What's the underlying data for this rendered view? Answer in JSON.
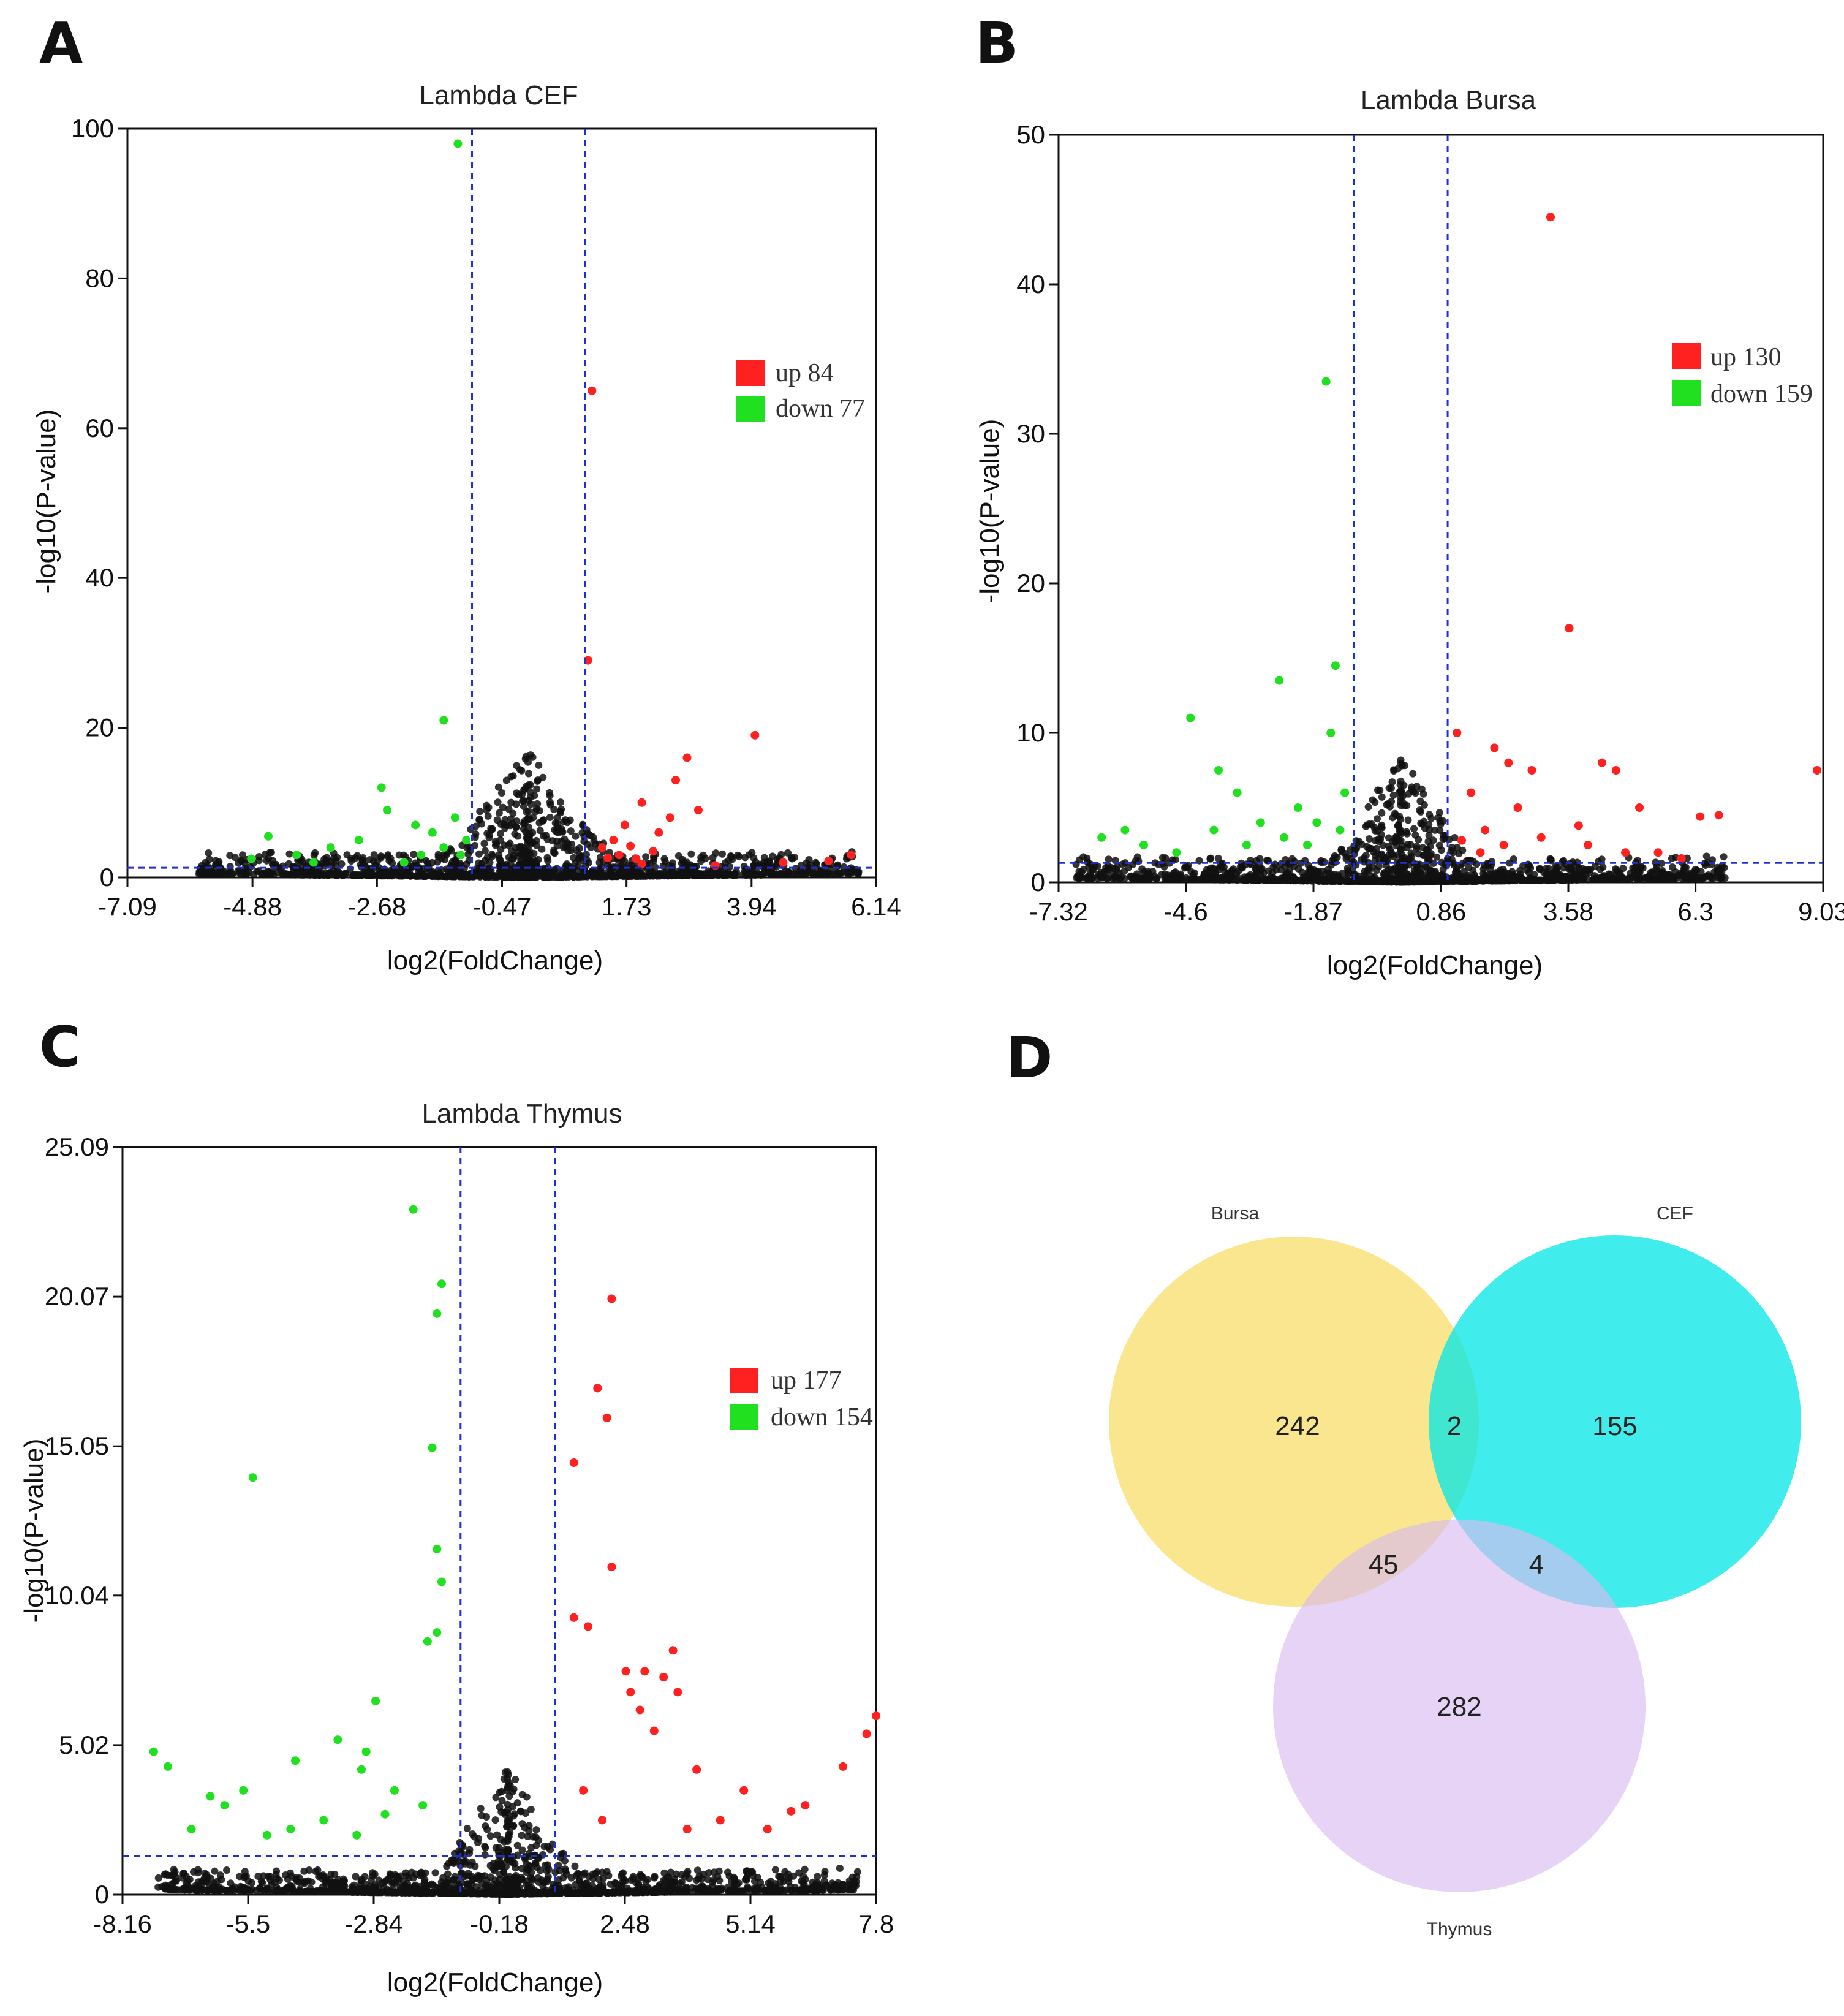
{
  "panels": {
    "A": {
      "letter": "A"
    },
    "B": {
      "letter": "B"
    },
    "C": {
      "letter": "C"
    },
    "D": {
      "letter": "D"
    }
  },
  "chart_data": [
    {
      "id": "A",
      "type": "scatter",
      "title": "Lambda CEF",
      "xlabel": "log2(FoldChange)",
      "ylabel": "-log10(P-value)",
      "xlim": [
        -7.09,
        6.14
      ],
      "ylim": [
        0,
        100
      ],
      "x_ticks": [
        -7.09,
        -4.88,
        -2.68,
        -0.47,
        1.73,
        3.94,
        6.14
      ],
      "y_ticks": [
        0,
        20,
        40,
        60,
        80,
        100
      ],
      "x_tick_labels": [
        "-7.09",
        "-4.88",
        "-2.68",
        "-0.47",
        "1.73",
        "3.94",
        "6.14"
      ],
      "y_tick_labels": [
        "0",
        "20",
        "40",
        "60",
        "80",
        "100"
      ],
      "thresholds": {
        "fc": [
          -1.0,
          1.0
        ],
        "p": 1.3
      },
      "legend": [
        {
          "label": "up 84",
          "color": "#ff2020"
        },
        {
          "label": "down 77",
          "color": "#20e020"
        }
      ],
      "up_points": [
        [
          1.12,
          65
        ],
        [
          1.05,
          29
        ],
        [
          4.0,
          19
        ],
        [
          2.8,
          16
        ],
        [
          2.6,
          13
        ],
        [
          2.5,
          8
        ],
        [
          3.0,
          9
        ],
        [
          2.0,
          10
        ],
        [
          1.7,
          7
        ],
        [
          2.3,
          6
        ],
        [
          1.5,
          5
        ],
        [
          1.6,
          3
        ],
        [
          1.9,
          2.5
        ],
        [
          2.2,
          3.5
        ],
        [
          5.3,
          2.2
        ],
        [
          5.7,
          3
        ],
        [
          4.5,
          2
        ],
        [
          3.3,
          1.6
        ],
        [
          2.0,
          1.8
        ],
        [
          1.4,
          2.6
        ],
        [
          1.3,
          4
        ],
        [
          1.8,
          4.2
        ]
      ],
      "down_points": [
        [
          -1.25,
          98
        ],
        [
          -1.5,
          21
        ],
        [
          -2.6,
          12
        ],
        [
          -2.5,
          9
        ],
        [
          -2.0,
          7
        ],
        [
          -3.5,
          4
        ],
        [
          -4.6,
          5.5
        ],
        [
          -4.1,
          3
        ],
        [
          -3.0,
          5
        ],
        [
          -1.7,
          6
        ],
        [
          -1.3,
          8
        ],
        [
          -1.1,
          5
        ],
        [
          -1.9,
          3
        ],
        [
          -1.5,
          4
        ],
        [
          -2.2,
          2
        ],
        [
          -4.9,
          2.5
        ],
        [
          -3.8,
          2
        ],
        [
          -1.2,
          3
        ]
      ]
    },
    {
      "id": "B",
      "type": "scatter",
      "title": "Lambda Bursa",
      "xlabel": "log2(FoldChange)",
      "ylabel": "-log10(P-value)",
      "xlim": [
        -7.32,
        9.03
      ],
      "ylim": [
        0,
        50
      ],
      "x_ticks": [
        -7.32,
        -4.6,
        -1.87,
        0.86,
        3.58,
        6.3,
        9.03
      ],
      "y_ticks": [
        0,
        10,
        20,
        30,
        40,
        50
      ],
      "x_tick_labels": [
        "-7.32",
        "-4.6",
        "-1.87",
        "0.86",
        "3.58",
        "6.3",
        "9.03"
      ],
      "y_tick_labels": [
        "0",
        "10",
        "20",
        "30",
        "40",
        "50"
      ],
      "thresholds": {
        "fc": [
          -1.0,
          1.0
        ],
        "p": 1.3
      },
      "legend": [
        {
          "label": "up 130",
          "color": "#ff2020"
        },
        {
          "label": "down 159",
          "color": "#20e020"
        }
      ],
      "up_points": [
        [
          3.2,
          44.5
        ],
        [
          3.6,
          17
        ],
        [
          8.9,
          7.5
        ],
        [
          1.2,
          10
        ],
        [
          2.0,
          9
        ],
        [
          2.3,
          8
        ],
        [
          2.8,
          7.5
        ],
        [
          4.3,
          8
        ],
        [
          4.6,
          7.5
        ],
        [
          5.1,
          5
        ],
        [
          6.4,
          4.4
        ],
        [
          6.8,
          4.5
        ],
        [
          1.5,
          6
        ],
        [
          2.5,
          5
        ],
        [
          1.8,
          3.5
        ],
        [
          3.0,
          3
        ],
        [
          4.0,
          2.5
        ],
        [
          5.5,
          2
        ],
        [
          2.2,
          2.5
        ],
        [
          1.3,
          2.8
        ],
        [
          3.8,
          3.8
        ],
        [
          4.8,
          2
        ],
        [
          1.7,
          2
        ],
        [
          6.0,
          1.6
        ]
      ],
      "down_points": [
        [
          -1.6,
          33.5
        ],
        [
          -1.4,
          14.5
        ],
        [
          -2.6,
          13.5
        ],
        [
          -4.5,
          11
        ],
        [
          -1.5,
          10
        ],
        [
          -3.9,
          7.5
        ],
        [
          -3.5,
          6
        ],
        [
          -2.2,
          5
        ],
        [
          -3.0,
          4
        ],
        [
          -4.0,
          3.5
        ],
        [
          -5.9,
          3.5
        ],
        [
          -6.4,
          3
        ],
        [
          -5.5,
          2.5
        ],
        [
          -1.2,
          6
        ],
        [
          -1.8,
          4
        ],
        [
          -2.5,
          3
        ],
        [
          -3.3,
          2.5
        ],
        [
          -1.3,
          3.5
        ],
        [
          -2.0,
          2.5
        ],
        [
          -4.8,
          2
        ]
      ]
    },
    {
      "id": "C",
      "type": "scatter",
      "title": "Lambda Thymus",
      "xlabel": "log2(FoldChange)",
      "ylabel": "-log10(P-value)",
      "xlim": [
        -8.16,
        7.8
      ],
      "ylim": [
        0,
        25.09
      ],
      "x_ticks": [
        -8.16,
        -5.5,
        -2.84,
        -0.18,
        2.48,
        5.14,
        7.8
      ],
      "y_ticks": [
        0,
        5.02,
        10.04,
        15.05,
        20.07,
        25.09
      ],
      "x_tick_labels": [
        "-8.16",
        "-5.5",
        "-2.84",
        "-0.18",
        "2.48",
        "5.14",
        "7.8"
      ],
      "y_tick_labels": [
        "0",
        "5.02",
        "10.04",
        "15.05",
        "20.07",
        "25.09"
      ],
      "thresholds": {
        "fc": [
          -1.0,
          1.0
        ],
        "p": 1.3
      },
      "legend": [
        {
          "label": "up 177",
          "color": "#ff2020"
        },
        {
          "label": "down 154",
          "color": "#20e020"
        }
      ],
      "up_points": [
        [
          2.2,
          20
        ],
        [
          1.9,
          17
        ],
        [
          2.1,
          16
        ],
        [
          1.4,
          14.5
        ],
        [
          2.2,
          11
        ],
        [
          1.4,
          9.3
        ],
        [
          1.7,
          9
        ],
        [
          2.5,
          7.5
        ],
        [
          2.9,
          7.5
        ],
        [
          3.5,
          8.2
        ],
        [
          3.3,
          7.3
        ],
        [
          2.6,
          6.8
        ],
        [
          2.8,
          6.2
        ],
        [
          3.1,
          5.5
        ],
        [
          3.6,
          6.8
        ],
        [
          7.8,
          6
        ],
        [
          7.6,
          5.4
        ],
        [
          7.1,
          4.3
        ],
        [
          6.3,
          3
        ],
        [
          6.0,
          2.8
        ],
        [
          5.0,
          3.5
        ],
        [
          4.5,
          2.5
        ],
        [
          3.8,
          2.2
        ],
        [
          1.6,
          3.5
        ],
        [
          2.0,
          2.5
        ],
        [
          4.0,
          4.2
        ],
        [
          5.5,
          2.2
        ]
      ],
      "down_points": [
        [
          -2.0,
          23
        ],
        [
          -1.4,
          20.5
        ],
        [
          -1.5,
          19.5
        ],
        [
          -1.6,
          15
        ],
        [
          -5.4,
          14
        ],
        [
          -1.5,
          11.6
        ],
        [
          -1.4,
          10.5
        ],
        [
          -1.7,
          8.5
        ],
        [
          -1.5,
          8.8
        ],
        [
          -2.8,
          6.5
        ],
        [
          -3.6,
          5.2
        ],
        [
          -4.5,
          4.5
        ],
        [
          -3.0,
          4.8
        ],
        [
          -3.1,
          4.2
        ],
        [
          -7.5,
          4.8
        ],
        [
          -7.2,
          4.3
        ],
        [
          -6.3,
          3.3
        ],
        [
          -6.0,
          3
        ],
        [
          -5.6,
          3.5
        ],
        [
          -3.9,
          2.5
        ],
        [
          -2.4,
          3.5
        ],
        [
          -2.6,
          2.7
        ],
        [
          -4.6,
          2.2
        ],
        [
          -6.7,
          2.2
        ],
        [
          -5.1,
          2
        ],
        [
          -3.2,
          2
        ],
        [
          -1.8,
          3
        ]
      ]
    }
  ],
  "venn": {
    "sets": [
      {
        "label": "Bursa",
        "color": "#f8e27a"
      },
      {
        "label": "CEF",
        "color": "#00e6e6"
      },
      {
        "label": "Thymus",
        "color": "#d8bcf0"
      }
    ],
    "counts": {
      "bursa_only": "242",
      "bursa_cef": "2",
      "cef_only": "155",
      "bursa_thymus": "45",
      "cef_thymus": "4",
      "thymus_only": "282"
    }
  }
}
